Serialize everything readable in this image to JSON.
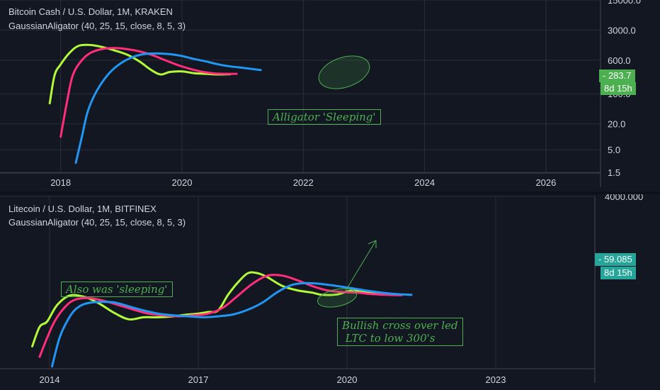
{
  "chart_data": [
    {
      "type": "line",
      "title": "Bitcoin Cash / U.S. Dollar, 1M, KRAKEN",
      "indicator": "GaussianAligator (40, 25, 15, close, 8, 5, 3)",
      "scale": "log",
      "grid": true,
      "x_ticks": [
        "2018",
        "2020",
        "2022",
        "2024",
        "2026"
      ],
      "y_ticks": [
        "15000.0",
        "3000.0",
        "600.0",
        "100.0",
        "20.0",
        "5.0",
        "1.5"
      ],
      "y_tick_values": [
        15000,
        3000,
        600,
        100,
        20,
        5,
        1.5
      ],
      "xlim": [
        2017.0,
        2026.9
      ],
      "ylim": [
        1.5,
        15000
      ],
      "price_label": "283.7",
      "countdown_label": "8d 15h",
      "series": [
        {
          "color": "#b2f93a",
          "x": [
            2017.82,
            2017.9,
            2018.0,
            2018.15,
            2018.3,
            2018.5,
            2018.7,
            2018.9,
            2019.1,
            2019.3,
            2019.5,
            2019.65,
            2019.8,
            2020.0,
            2020.2,
            2020.4,
            2020.6,
            2020.8
          ],
          "y": [
            60,
            270,
            480,
            900,
            1300,
            1350,
            1200,
            1000,
            800,
            560,
            350,
            280,
            320,
            330,
            300,
            290,
            280,
            285
          ]
        },
        {
          "color": "#ff2d7a",
          "x": [
            2018.0,
            2018.1,
            2018.2,
            2018.35,
            2018.5,
            2018.7,
            2018.9,
            2019.1,
            2019.3,
            2019.5,
            2019.7,
            2019.9,
            2020.1,
            2020.3,
            2020.5,
            2020.7,
            2020.9
          ],
          "y": [
            10,
            60,
            270,
            600,
            900,
            1100,
            1150,
            1080,
            960,
            800,
            620,
            480,
            390,
            330,
            300,
            290,
            290
          ]
        },
        {
          "color": "#2196f3",
          "x": [
            2018.25,
            2018.35,
            2018.45,
            2018.6,
            2018.8,
            2019.0,
            2019.2,
            2019.4,
            2019.6,
            2019.8,
            2020.0,
            2020.2,
            2020.4,
            2020.6,
            2020.8,
            2021.0,
            2021.2,
            2021.3
          ],
          "y": [
            2.5,
            10,
            40,
            120,
            300,
            520,
            720,
            840,
            860,
            830,
            750,
            640,
            560,
            480,
            430,
            400,
            370,
            355
          ]
        }
      ],
      "annotations": [
        {
          "kind": "text-box",
          "text": "Alligator 'Sleeping'"
        },
        {
          "kind": "ellipse-highlight"
        }
      ]
    },
    {
      "type": "line",
      "title": "Litecoin / U.S. Dollar, 1M, BITFINEX",
      "indicator": "GaussianAligator (40, 25, 15, close, 8, 5, 3)",
      "scale": "log",
      "grid": true,
      "x_ticks": [
        "2014",
        "2017",
        "2020",
        "2023"
      ],
      "y_ticks": [
        "4000.000"
      ],
      "y_tick_values": [
        4000
      ],
      "xlim": [
        2013.0,
        2025.0
      ],
      "ylim": [
        2.8,
        4000
      ],
      "price_label": "59.085",
      "countdown_label": "8d 15h",
      "series": [
        {
          "color": "#b2f93a",
          "x": [
            2013.65,
            2013.8,
            2013.95,
            2014.15,
            2014.4,
            2014.7,
            2015.0,
            2015.3,
            2015.6,
            2015.9,
            2016.2,
            2016.5,
            2016.8,
            2017.0,
            2017.2,
            2017.4,
            2017.6,
            2017.8,
            2018.0,
            2018.2,
            2018.4,
            2018.7,
            2019.0,
            2019.3,
            2019.5,
            2019.8,
            2020.1,
            2020.5,
            2020.8
          ],
          "y": [
            7,
            16,
            20,
            40,
            60,
            57,
            43,
            29,
            22,
            24,
            24,
            25,
            27,
            28,
            30,
            32,
            62,
            105,
            155,
            155,
            130,
            90,
            75,
            68,
            62,
            63,
            74,
            68,
            64
          ]
        },
        {
          "color": "#ff2d7a",
          "x": [
            2013.8,
            2013.95,
            2014.1,
            2014.3,
            2014.5,
            2014.8,
            2015.1,
            2015.4,
            2015.7,
            2016.0,
            2016.3,
            2016.6,
            2016.9,
            2017.2,
            2017.5,
            2017.8,
            2018.1,
            2018.4,
            2018.7,
            2019.0,
            2019.3,
            2019.6,
            2019.9,
            2020.2,
            2020.5,
            2020.8,
            2021.1
          ],
          "y": [
            4.5,
            10,
            20,
            36,
            50,
            54,
            48,
            40,
            33,
            28,
            26,
            25,
            26,
            28,
            36,
            60,
            100,
            140,
            140,
            115,
            90,
            75,
            70,
            68,
            64,
            62,
            61
          ]
        },
        {
          "color": "#2196f3",
          "x": [
            2014.05,
            2014.2,
            2014.35,
            2014.5,
            2014.7,
            2015.0,
            2015.3,
            2015.6,
            2015.9,
            2016.2,
            2016.5,
            2016.8,
            2017.1,
            2017.4,
            2017.7,
            2018.0,
            2018.3,
            2018.6,
            2018.9,
            2019.2,
            2019.5,
            2019.8,
            2020.1,
            2020.4,
            2020.7,
            2021.0,
            2021.3
          ],
          "y": [
            3,
            10,
            20,
            32,
            42,
            46,
            45,
            38,
            32,
            28,
            26,
            25,
            24,
            25,
            27,
            33,
            45,
            70,
            95,
            102,
            98,
            90,
            82,
            74,
            68,
            64,
            62
          ]
        }
      ],
      "annotations": [
        {
          "kind": "text-box",
          "text": "Also was 'sleeping'"
        },
        {
          "kind": "text-box",
          "text": "Bullish cross over led\n LTC to low 300's"
        },
        {
          "kind": "ellipse-highlight"
        },
        {
          "kind": "arrow"
        }
      ]
    }
  ],
  "colors": {
    "background": "#131722",
    "grid": "#2a2e39",
    "axis_text": "#d1d4dc",
    "annotation": "#4caf50",
    "price_tag_top": "#4caf50",
    "price_tag_bottom": "#26a69a"
  }
}
